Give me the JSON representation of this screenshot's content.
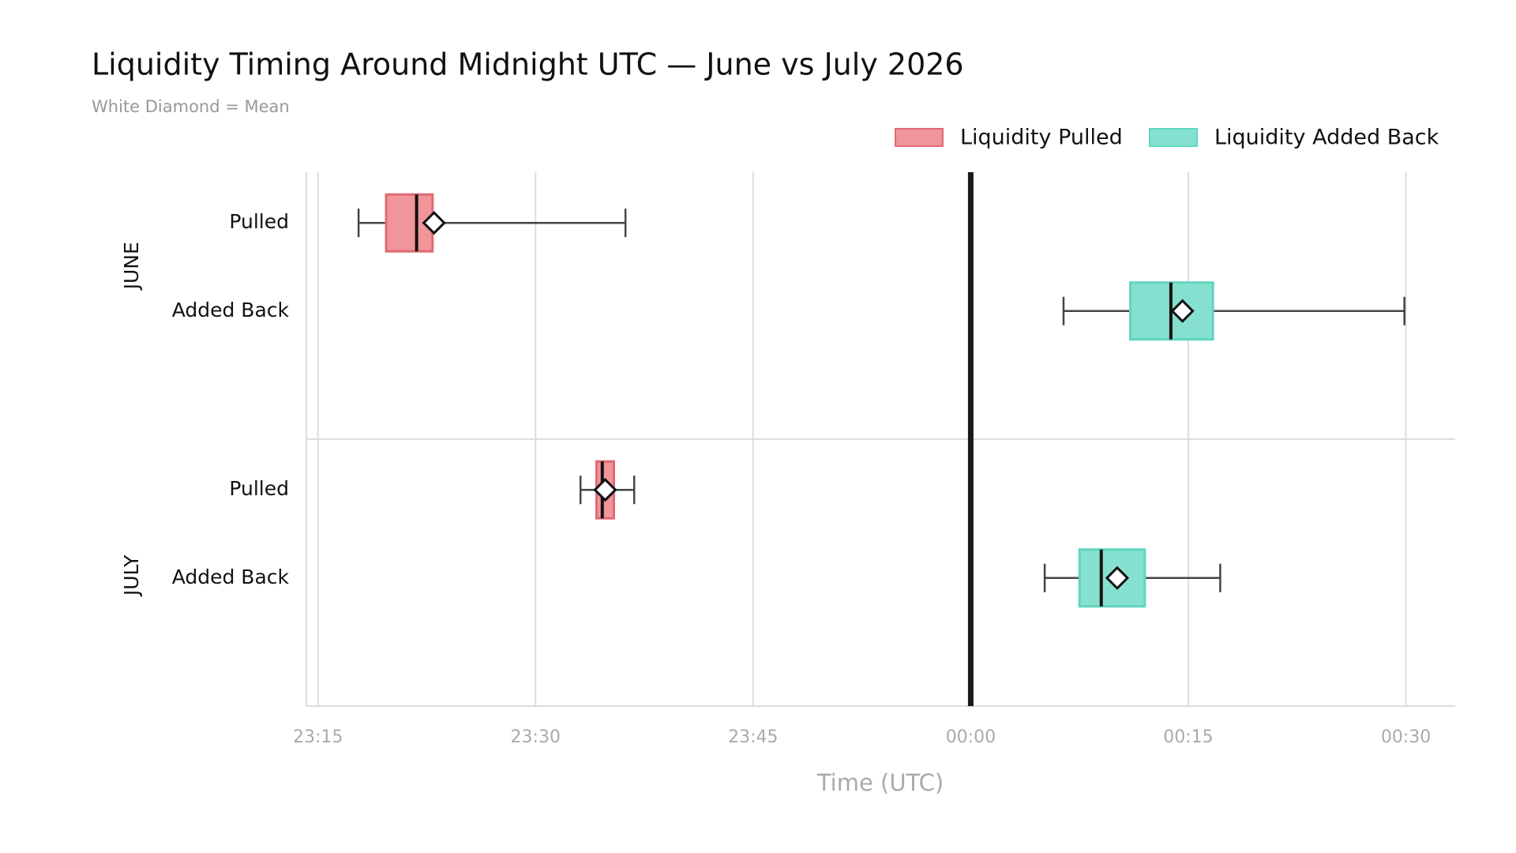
{
  "chart_data": {
    "type": "box",
    "title": "Liquidity Timing Around Midnight UTC — June vs July 2026",
    "subtitle": "White Diamond = Mean",
    "xlabel": "Time (UTC)",
    "xlim": [
      -45.8,
      33.4
    ],
    "xticks": [
      {
        "value": -45,
        "label": "23:15"
      },
      {
        "value": -30,
        "label": "23:30"
      },
      {
        "value": -15,
        "label": "23:45"
      },
      {
        "value": 0,
        "label": "00:00"
      },
      {
        "value": 15,
        "label": "00:15"
      },
      {
        "value": 30,
        "label": "00:30"
      }
    ],
    "vline": 0,
    "grid": true,
    "legend": "top-right",
    "series": [
      {
        "name": "Liquidity Pulled",
        "color": "#f0959a",
        "edge": "#e06a72"
      },
      {
        "name": "Liquidity Added Back",
        "color": "#85e0cf",
        "edge": "#5fd6bf"
      }
    ],
    "panels": [
      {
        "label": "JUNE",
        "categories": [
          "Pulled",
          "Added Back"
        ],
        "boxes": [
          {
            "min": -42.2,
            "q1": -40.3,
            "median": -38.2,
            "q3": -37.1,
            "max": -23.8,
            "mean": -37.0
          },
          {
            "min": 6.4,
            "q1": 11.0,
            "median": 13.8,
            "q3": 16.7,
            "max": 29.9,
            "mean": 14.6
          }
        ]
      },
      {
        "label": "JULY",
        "categories": [
          "Pulled",
          "Added Back"
        ],
        "boxes": [
          {
            "min": -26.9,
            "q1": -25.8,
            "median": -25.4,
            "q3": -24.6,
            "max": -23.2,
            "mean": -25.2
          },
          {
            "min": 5.1,
            "q1": 7.5,
            "median": 9.0,
            "q3": 12.0,
            "max": 17.2,
            "mean": 10.1
          }
        ]
      }
    ]
  }
}
